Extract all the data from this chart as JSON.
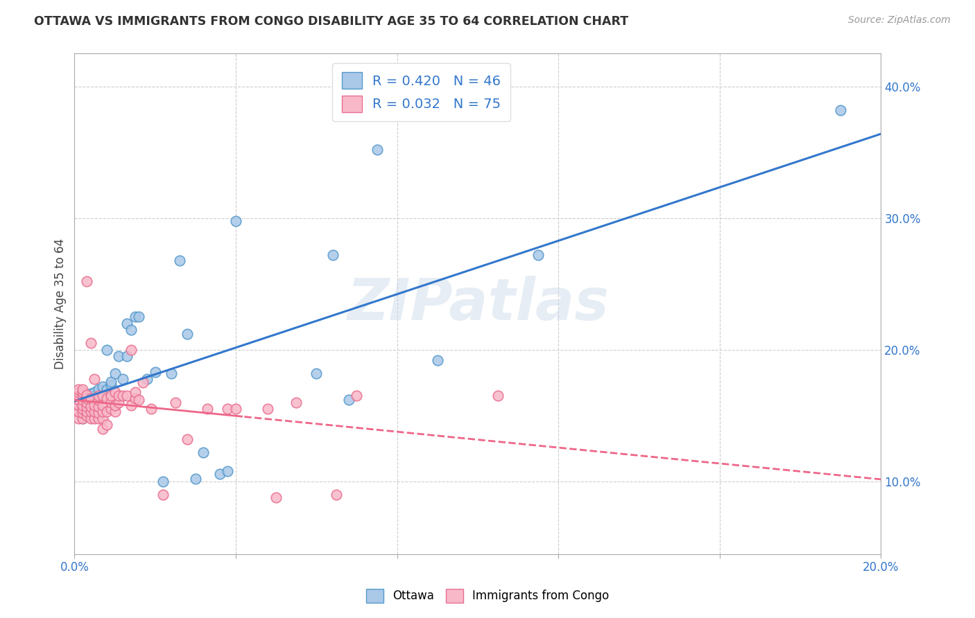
{
  "title": "OTTAWA VS IMMIGRANTS FROM CONGO DISABILITY AGE 35 TO 64 CORRELATION CHART",
  "source": "Source: ZipAtlas.com",
  "ylabel_label": "Disability Age 35 to 64",
  "xlim": [
    0.0,
    0.2
  ],
  "ylim": [
    0.045,
    0.425
  ],
  "xtick_positions": [
    0.0,
    0.04,
    0.08,
    0.12,
    0.16,
    0.2
  ],
  "xtick_labels": [
    "0.0%",
    "",
    "",
    "",
    "",
    "20.0%"
  ],
  "ytick_right_positions": [
    0.1,
    0.2,
    0.3,
    0.4
  ],
  "ytick_right_labels": [
    "10.0%",
    "20.0%",
    "30.0%",
    "40.0%"
  ],
  "ottawa_R": 0.42,
  "ottawa_N": 46,
  "congo_R": 0.032,
  "congo_N": 75,
  "ottawa_color": "#aac8e8",
  "ottawa_edge_color": "#5599cc",
  "congo_color": "#f8b8c8",
  "congo_edge_color": "#e87090",
  "ottawa_line_color": "#3377cc",
  "congo_line_color": "#ee6688",
  "watermark": "ZIPatlas",
  "legend_labels": [
    "Ottawa",
    "Immigrants from Congo"
  ],
  "legend_text_color": "#3377cc",
  "grid_color": "#cccccc",
  "title_color": "#333333",
  "source_color": "#999999",
  "ottawa_x": [
    0.002,
    0.002,
    0.003,
    0.003,
    0.004,
    0.004,
    0.004,
    0.005,
    0.005,
    0.005,
    0.006,
    0.006,
    0.006,
    0.007,
    0.007,
    0.008,
    0.008,
    0.009,
    0.009,
    0.01,
    0.01,
    0.011,
    0.012,
    0.013,
    0.013,
    0.014,
    0.015,
    0.016,
    0.018,
    0.02,
    0.022,
    0.024,
    0.026,
    0.028,
    0.03,
    0.032,
    0.036,
    0.038,
    0.04,
    0.06,
    0.064,
    0.068,
    0.075,
    0.09,
    0.115,
    0.19
  ],
  "ottawa_y": [
    0.148,
    0.158,
    0.155,
    0.165,
    0.155,
    0.162,
    0.167,
    0.16,
    0.165,
    0.168,
    0.162,
    0.165,
    0.17,
    0.165,
    0.172,
    0.17,
    0.2,
    0.173,
    0.176,
    0.158,
    0.182,
    0.195,
    0.178,
    0.195,
    0.22,
    0.215,
    0.225,
    0.225,
    0.178,
    0.183,
    0.1,
    0.182,
    0.268,
    0.212,
    0.102,
    0.122,
    0.106,
    0.108,
    0.298,
    0.182,
    0.272,
    0.162,
    0.352,
    0.192,
    0.272,
    0.382
  ],
  "congo_x": [
    0.0,
    0.0,
    0.001,
    0.001,
    0.001,
    0.001,
    0.001,
    0.001,
    0.001,
    0.002,
    0.002,
    0.002,
    0.002,
    0.002,
    0.002,
    0.002,
    0.002,
    0.003,
    0.003,
    0.003,
    0.003,
    0.003,
    0.003,
    0.003,
    0.004,
    0.004,
    0.004,
    0.004,
    0.004,
    0.005,
    0.005,
    0.005,
    0.005,
    0.006,
    0.006,
    0.006,
    0.006,
    0.006,
    0.007,
    0.007,
    0.007,
    0.007,
    0.007,
    0.008,
    0.008,
    0.008,
    0.009,
    0.009,
    0.009,
    0.01,
    0.01,
    0.01,
    0.011,
    0.011,
    0.012,
    0.013,
    0.014,
    0.014,
    0.015,
    0.015,
    0.016,
    0.017,
    0.019,
    0.022,
    0.025,
    0.028,
    0.033,
    0.038,
    0.04,
    0.048,
    0.05,
    0.055,
    0.065,
    0.07,
    0.105
  ],
  "congo_y": [
    0.155,
    0.16,
    0.148,
    0.153,
    0.158,
    0.162,
    0.165,
    0.168,
    0.17,
    0.148,
    0.152,
    0.155,
    0.158,
    0.162,
    0.165,
    0.168,
    0.17,
    0.15,
    0.153,
    0.157,
    0.16,
    0.163,
    0.166,
    0.252,
    0.148,
    0.153,
    0.157,
    0.163,
    0.205,
    0.148,
    0.153,
    0.158,
    0.178,
    0.148,
    0.152,
    0.157,
    0.162,
    0.165,
    0.14,
    0.148,
    0.153,
    0.158,
    0.165,
    0.143,
    0.153,
    0.163,
    0.155,
    0.16,
    0.165,
    0.153,
    0.158,
    0.168,
    0.16,
    0.165,
    0.165,
    0.165,
    0.158,
    0.2,
    0.163,
    0.168,
    0.162,
    0.175,
    0.155,
    0.09,
    0.16,
    0.132,
    0.155,
    0.155,
    0.155,
    0.155,
    0.088,
    0.16,
    0.09,
    0.165,
    0.165
  ]
}
